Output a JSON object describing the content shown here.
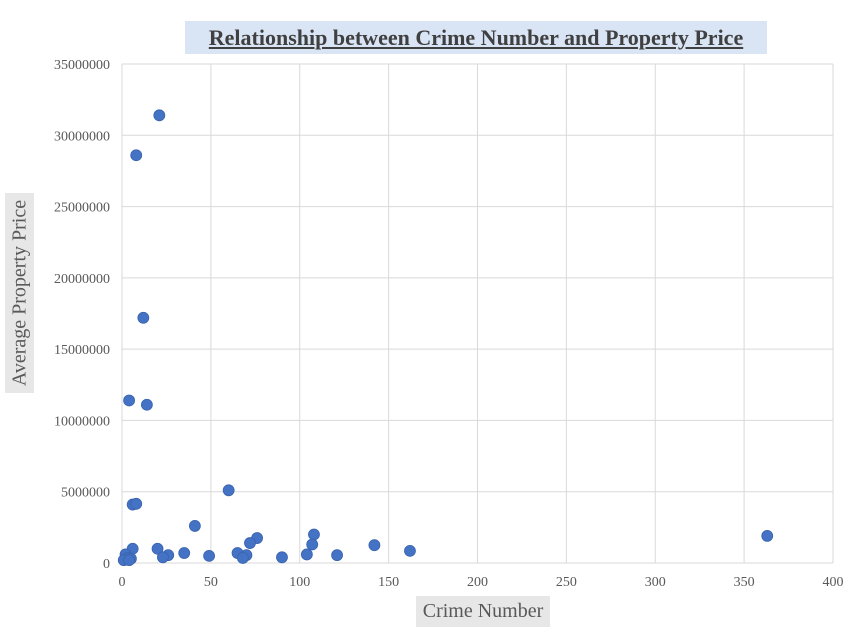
{
  "chart_data": {
    "type": "scatter",
    "title": "Relationship between Crime Number and Property Price",
    "xlabel": "Crime Number",
    "ylabel": "Average Property Price",
    "xlim": [
      0,
      400
    ],
    "ylim": [
      0,
      35000000
    ],
    "x_ticks": [
      "0",
      "50",
      "100",
      "150",
      "200",
      "250",
      "300",
      "350",
      "400"
    ],
    "y_ticks": [
      "0",
      "5000000",
      "10000000",
      "15000000",
      "20000000",
      "25000000",
      "30000000",
      "35000000"
    ],
    "grid": true,
    "legend": "none",
    "marker_color": "#4472c4",
    "points": [
      {
        "x": 21,
        "y": 31400000
      },
      {
        "x": 8,
        "y": 28600000
      },
      {
        "x": 12,
        "y": 17200000
      },
      {
        "x": 4,
        "y": 11400000
      },
      {
        "x": 14,
        "y": 11100000
      },
      {
        "x": 6,
        "y": 4100000
      },
      {
        "x": 8,
        "y": 4150000
      },
      {
        "x": 60,
        "y": 5100000
      },
      {
        "x": 41,
        "y": 2600000
      },
      {
        "x": 108,
        "y": 2000000
      },
      {
        "x": 76,
        "y": 1750000
      },
      {
        "x": 72,
        "y": 1400000
      },
      {
        "x": 107,
        "y": 1300000
      },
      {
        "x": 142,
        "y": 1250000
      },
      {
        "x": 363,
        "y": 1900000
      },
      {
        "x": 6,
        "y": 1000000
      },
      {
        "x": 20,
        "y": 1000000
      },
      {
        "x": 162,
        "y": 850000
      },
      {
        "x": 35,
        "y": 700000
      },
      {
        "x": 65,
        "y": 700000
      },
      {
        "x": 2,
        "y": 600000
      },
      {
        "x": 104,
        "y": 600000
      },
      {
        "x": 121,
        "y": 550000
      },
      {
        "x": 26,
        "y": 550000
      },
      {
        "x": 70,
        "y": 550000
      },
      {
        "x": 49,
        "y": 500000
      },
      {
        "x": 23,
        "y": 400000
      },
      {
        "x": 90,
        "y": 400000
      },
      {
        "x": 68,
        "y": 350000
      },
      {
        "x": 3,
        "y": 350000
      },
      {
        "x": 5,
        "y": 300000
      },
      {
        "x": 1,
        "y": 200000
      },
      {
        "x": 4,
        "y": 200000
      }
    ]
  }
}
